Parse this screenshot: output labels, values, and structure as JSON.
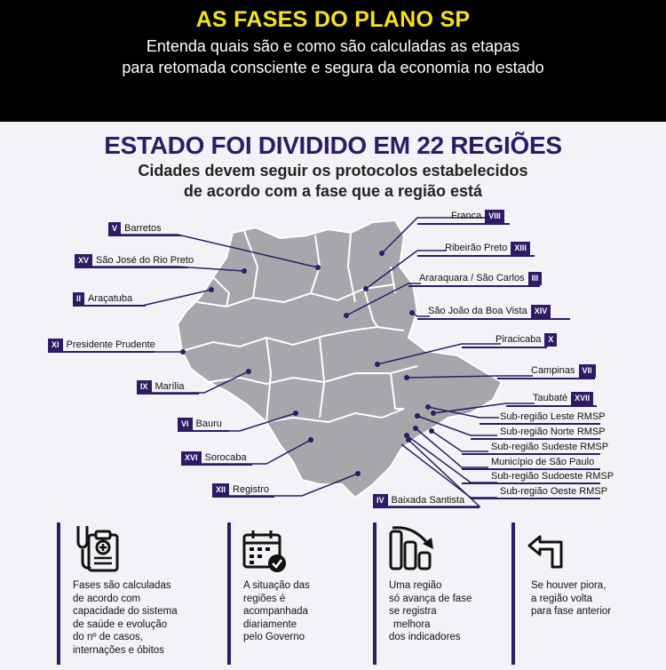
{
  "header": {
    "title": "AS FASES DO PLANO SP",
    "subtitle_line1": "Entenda quais são e como são calculadas as etapas",
    "subtitle_line2": "para retomada consciente e segura da economia no estado"
  },
  "section": {
    "title": "ESTADO FOI DIVIDIDO EM 22 REGIÕES",
    "subtitle_line1": "Cidades devem seguir os protocolos estabelecidos",
    "subtitle_line2": "de acordo com a fase que a região está"
  },
  "regions_left": [
    {
      "num": "V",
      "name": "Barretos"
    },
    {
      "num": "XV",
      "name": "São José do Rio Preto"
    },
    {
      "num": "II",
      "name": "Araçatuba"
    },
    {
      "num": "XI",
      "name": "Presidente Prudente"
    },
    {
      "num": "IX",
      "name": "Marília"
    },
    {
      "num": "VI",
      "name": "Bauru"
    },
    {
      "num": "XVI",
      "name": "Sorocaba"
    },
    {
      "num": "XII",
      "name": "Registro"
    },
    {
      "num": "IV",
      "name": "Baixada Santista"
    }
  ],
  "regions_right": [
    {
      "num": "VIII",
      "name": "Franca"
    },
    {
      "num": "XIII",
      "name": "Ribeirão Preto"
    },
    {
      "num": "III",
      "name": "Araraquara / São Carlos"
    },
    {
      "num": "XIV",
      "name": "São João da Boa Vista"
    },
    {
      "num": "X",
      "name": "Piracicaba"
    },
    {
      "num": "VII",
      "name": "Campinas"
    },
    {
      "num": "XVII",
      "name": "Taubaté"
    }
  ],
  "subregions": [
    "Sub-região Leste RMSP",
    "Sub-região Norte RMSP",
    "Sub-região Sudeste RMSP",
    "Município de São Paulo",
    "Sub-região Sudoeste RMSP",
    "Sub-região Oeste RMSP"
  ],
  "footer": [
    {
      "icon": "clipboard-stethoscope-icon",
      "text": [
        "Fases são calculadas",
        "de acordo com",
        "capacidade do sistema",
        "de saúde e evolução",
        "do nº de casos,",
        "internações e óbitos"
      ]
    },
    {
      "icon": "calendar-check-icon",
      "text": [
        "A situação das",
        "regiões é",
        "acompanhada",
        "diariamente",
        "pelo Governo"
      ]
    },
    {
      "icon": "bars-decline-icon",
      "text": [
        "Uma região",
        "só avança de fase",
        "se registra",
        "melhora",
        "dos indicadores"
      ]
    },
    {
      "icon": "return-arrow-icon",
      "text": [
        "Se houver piora,",
        "a região volta",
        "para fase anterior"
      ]
    }
  ],
  "colors": {
    "accent": "#2f1a66",
    "title_yellow": "#f7e11b",
    "map_fill": "#a7a7ab"
  }
}
